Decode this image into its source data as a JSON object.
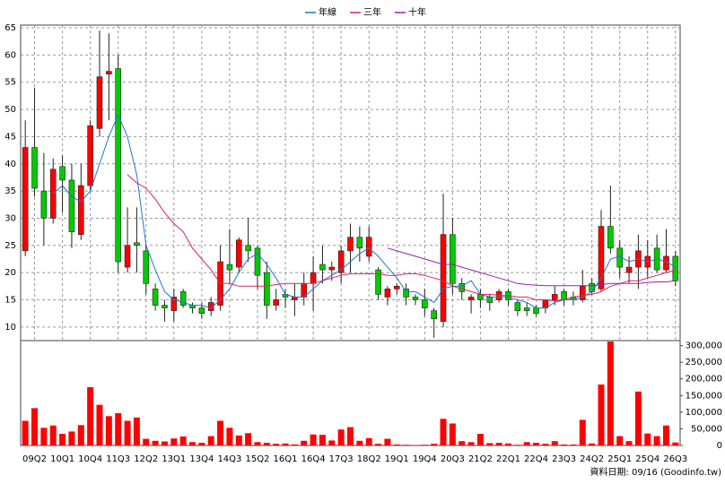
{
  "chart_data": [
    {
      "type": "candlestick",
      "categories": [
        null,
        "09Q2",
        null,
        null,
        "10Q1",
        null,
        null,
        "10Q4",
        null,
        null,
        "11Q3",
        null,
        null,
        "12Q2",
        null,
        null,
        "13Q1",
        null,
        null,
        "13Q4",
        null,
        null,
        "14Q3",
        null,
        null,
        "15Q2",
        null,
        null,
        "16Q1",
        null,
        null,
        "16Q4",
        null,
        null,
        "17Q3",
        null,
        null,
        "18Q2",
        null,
        null,
        "19Q1",
        null,
        null,
        "19Q4",
        null,
        null,
        "20Q3",
        null,
        null,
        "21Q2",
        null,
        null,
        "22Q1",
        null,
        null,
        "22Q4",
        null,
        null,
        "23Q3",
        null,
        null,
        "24Q2",
        null,
        null,
        "25Q1",
        null,
        null,
        "25Q4",
        null,
        null,
        "26Q3"
      ],
      "open": [
        24,
        43,
        35,
        30,
        39.5,
        37,
        27,
        36,
        46.5,
        56.5,
        57.5,
        21,
        25.5,
        24,
        17,
        14,
        13,
        16.5,
        14,
        13.5,
        13,
        14,
        21.5,
        21,
        25,
        24.5,
        20,
        14,
        16,
        15,
        15.5,
        18,
        21.5,
        20.5,
        20,
        24,
        26.5,
        23,
        20.5,
        15.5,
        17,
        17,
        15.5,
        15,
        13,
        11,
        27,
        18,
        15,
        16,
        15.5,
        15,
        16.5,
        14.5,
        13.5,
        13.5,
        13.5,
        15,
        16.5,
        15.5,
        15,
        18,
        17,
        28.5,
        24.5,
        20,
        21,
        21,
        24.5,
        20.5,
        23
      ],
      "high": [
        48,
        54,
        42,
        41,
        41.5,
        40,
        40,
        48,
        64.5,
        64,
        60,
        32,
        32,
        25,
        18,
        15,
        17,
        17,
        14.5,
        14.5,
        15.5,
        25,
        28,
        26.5,
        30,
        25,
        22,
        17,
        17,
        18,
        20,
        23,
        25,
        22,
        25,
        29,
        28.5,
        28.5,
        21,
        17.5,
        18,
        18,
        16,
        17,
        13.5,
        34.5,
        30,
        19,
        16,
        17,
        16,
        17,
        17,
        15,
        14.5,
        14,
        15,
        17.5,
        17,
        16.5,
        20.5,
        19,
        31.5,
        36,
        26,
        23,
        27,
        26,
        27,
        28,
        24
      ],
      "low": [
        23,
        34,
        25,
        29,
        31,
        24.5,
        26,
        35,
        45,
        48,
        20,
        20,
        20,
        16,
        13,
        11,
        11,
        13.5,
        12.5,
        11.5,
        12,
        13,
        18,
        20,
        22,
        17,
        11.5,
        13,
        13.5,
        12,
        14,
        13,
        18,
        18.5,
        18,
        20,
        22,
        22,
        15,
        14,
        16,
        14,
        14,
        12,
        8,
        10,
        16,
        15,
        12.5,
        13.5,
        13,
        14.5,
        14,
        12,
        12,
        12,
        12.5,
        14,
        14,
        14,
        14.5,
        16,
        16.5,
        23.5,
        19,
        18,
        17,
        19,
        20,
        20,
        17.5
      ],
      "close": [
        43,
        35.5,
        30,
        39,
        37,
        27.5,
        36,
        47,
        56,
        57,
        22,
        25,
        25,
        18,
        14,
        13.5,
        15.5,
        14,
        13.5,
        12.5,
        14.5,
        22,
        20.5,
        26,
        24,
        19.5,
        14,
        15,
        15.5,
        15.5,
        18,
        20,
        20.5,
        21,
        24,
        26.5,
        24.5,
        26.5,
        16,
        17,
        17.5,
        15.5,
        15,
        13.5,
        11.5,
        27,
        18,
        16.5,
        15.5,
        15,
        14.5,
        16.5,
        15,
        13,
        13,
        12.5,
        15,
        16,
        15,
        15,
        17.5,
        16.5,
        28.5,
        24.5,
        21,
        21,
        24,
        23,
        20.5,
        23,
        18.5
      ],
      "up_color": "#ff0000",
      "down_color": "#00cc00",
      "series": [
        {
          "name": "年線",
          "color": "#1f77d0",
          "values": [
            null,
            null,
            null,
            34.5,
            36,
            34,
            33,
            35,
            40,
            45,
            49,
            45,
            38,
            25,
            20.5,
            16.5,
            15,
            14.5,
            14,
            14,
            13.5,
            15,
            17,
            20,
            22.5,
            23.5,
            21.5,
            19,
            16,
            15.5,
            15.5,
            17,
            18.5,
            19.5,
            20.5,
            22,
            23.5,
            24.5,
            23,
            21,
            19,
            16.5,
            16.5,
            15.5,
            14.5,
            17,
            17.5,
            17.5,
            18.5,
            16,
            15.5,
            15.5,
            15.5,
            15,
            14.5,
            13.5,
            13.5,
            14.5,
            15,
            15,
            15.5,
            16.5,
            19,
            22.5,
            23,
            22,
            22.5,
            22,
            22.5,
            22,
            21
          ]
        },
        {
          "name": "三年",
          "color": "#e0205a",
          "values": [
            null,
            null,
            null,
            null,
            null,
            null,
            null,
            null,
            null,
            null,
            null,
            38,
            36.5,
            35.5,
            33.5,
            31,
            29,
            27.5,
            24.5,
            22.5,
            20.5,
            18,
            18,
            17.5,
            17.5,
            17.5,
            17.5,
            17.8,
            18,
            18,
            18,
            18,
            18.5,
            19,
            19.5,
            19.8,
            19.8,
            19.8,
            19.8,
            19.5,
            19.5,
            19.8,
            19.8,
            19.5,
            19,
            18.5,
            17.5,
            17,
            16.5,
            16,
            16,
            15.8,
            15.8,
            15.5,
            15.5,
            15,
            15,
            14.8,
            15,
            15.5,
            15.8,
            16,
            16.5,
            17.5,
            18,
            18.5,
            18.5,
            19,
            19.5,
            20,
            20.5
          ]
        },
        {
          "name": "十年",
          "color": "#9b1fb0",
          "values": [
            null,
            null,
            null,
            null,
            null,
            null,
            null,
            null,
            null,
            null,
            null,
            null,
            null,
            null,
            null,
            null,
            null,
            null,
            null,
            null,
            null,
            null,
            null,
            null,
            null,
            null,
            null,
            null,
            null,
            null,
            null,
            null,
            null,
            null,
            null,
            null,
            null,
            null,
            null,
            24.5,
            24,
            23.5,
            23,
            22.5,
            22,
            21.5,
            21.5,
            21,
            20.5,
            20,
            19.5,
            19,
            18.5,
            18,
            17.8,
            17.7,
            17.6,
            17.6,
            17.6,
            17.6,
            17.6,
            17.6,
            17.8,
            18,
            18,
            18,
            18,
            18.2,
            18.3,
            18.3,
            18.5
          ]
        }
      ],
      "ylim": [
        7.5,
        65.5
      ],
      "yticks": [
        10,
        15,
        20,
        25,
        30,
        35,
        40,
        45,
        50,
        55,
        60,
        65
      ],
      "grid": true
    },
    {
      "type": "bar",
      "color": "#ff0000",
      "values": [
        74000,
        112000,
        53000,
        60000,
        35000,
        42000,
        61000,
        175000,
        122000,
        88000,
        97000,
        74000,
        84000,
        20000,
        14000,
        12000,
        21000,
        27000,
        10000,
        8000,
        28000,
        74000,
        53000,
        30000,
        37000,
        10000,
        8000,
        5000,
        6000,
        3000,
        14000,
        33000,
        32000,
        15000,
        48000,
        55000,
        14000,
        22000,
        5000,
        20000,
        3000,
        2000,
        1000,
        2000,
        5000,
        80000,
        66000,
        13000,
        10000,
        35000,
        7000,
        8000,
        6000,
        2000,
        10000,
        8000,
        5000,
        13000,
        3000,
        3000,
        77000,
        6000,
        183000,
        312000,
        28000,
        13000,
        162000,
        36000,
        28000,
        60000,
        9000
      ],
      "ylim": [
        0,
        315000
      ],
      "yticks": [
        0,
        {
          "value": 50000,
          "label": "50,000"
        },
        {
          "value": 100000,
          "label": "100,000"
        },
        {
          "value": 150000,
          "label": "150,000"
        },
        {
          "value": 200000,
          "label": "200,000"
        },
        {
          "value": 250000,
          "label": "250,000"
        },
        {
          "value": 300000,
          "label": "300,000"
        }
      ]
    }
  ],
  "footer": "資料日期: 09/16 (Goodinfo.tw)"
}
